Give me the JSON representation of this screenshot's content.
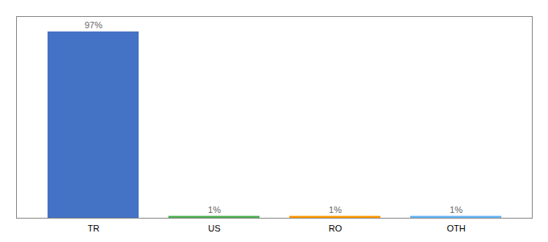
{
  "chart_data": {
    "type": "bar",
    "categories": [
      "TR",
      "US",
      "RO",
      "OTH"
    ],
    "values": [
      97,
      1,
      1,
      1
    ],
    "value_labels": [
      "97%",
      "1%",
      "1%",
      "1%"
    ],
    "colors": [
      "#4472c4",
      "#4caf50",
      "#ff9800",
      "#64b5f6"
    ],
    "ylim": [
      0,
      105
    ],
    "yticks": [],
    "tick_labels": "x",
    "data_labels": true,
    "grid": false
  }
}
